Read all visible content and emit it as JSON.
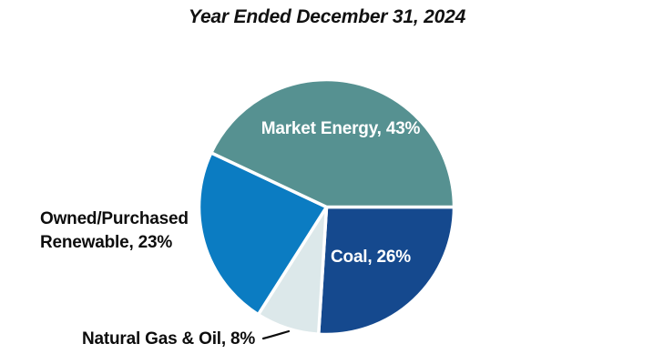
{
  "title": "Year Ended December 31, 2024",
  "chart_data": {
    "type": "pie",
    "title": "Year Ended December 31, 2024",
    "start_angle_deg": 90,
    "direction": "clockwise",
    "border_color": "#FFFFFF",
    "slices": [
      {
        "name": "Coal",
        "value": 26,
        "unit": "%",
        "color": "#15498E",
        "label_text": "Coal, 26%",
        "label_color": "#FFFFFF",
        "label_position": "inside"
      },
      {
        "name": "Natural Gas & Oil",
        "value": 8,
        "unit": "%",
        "color": "#DCE8EA",
        "label_text": "Natural Gas & Oil, 8%",
        "label_color": "#000000",
        "label_position": "outside-callout"
      },
      {
        "name": "Owned/Purchased Renewable",
        "value": 23,
        "unit": "%",
        "color": "#0B7CC2",
        "label_line1": "Owned/Purchased",
        "label_line2": "Renewable, 23%",
        "label_color": "#000000",
        "label_position": "outside"
      },
      {
        "name": "Market Energy",
        "value": 43,
        "unit": "%",
        "color": "#569191",
        "label_text": "Market Energy, 43%",
        "label_color": "#FFFFFF",
        "label_position": "inside"
      }
    ]
  }
}
